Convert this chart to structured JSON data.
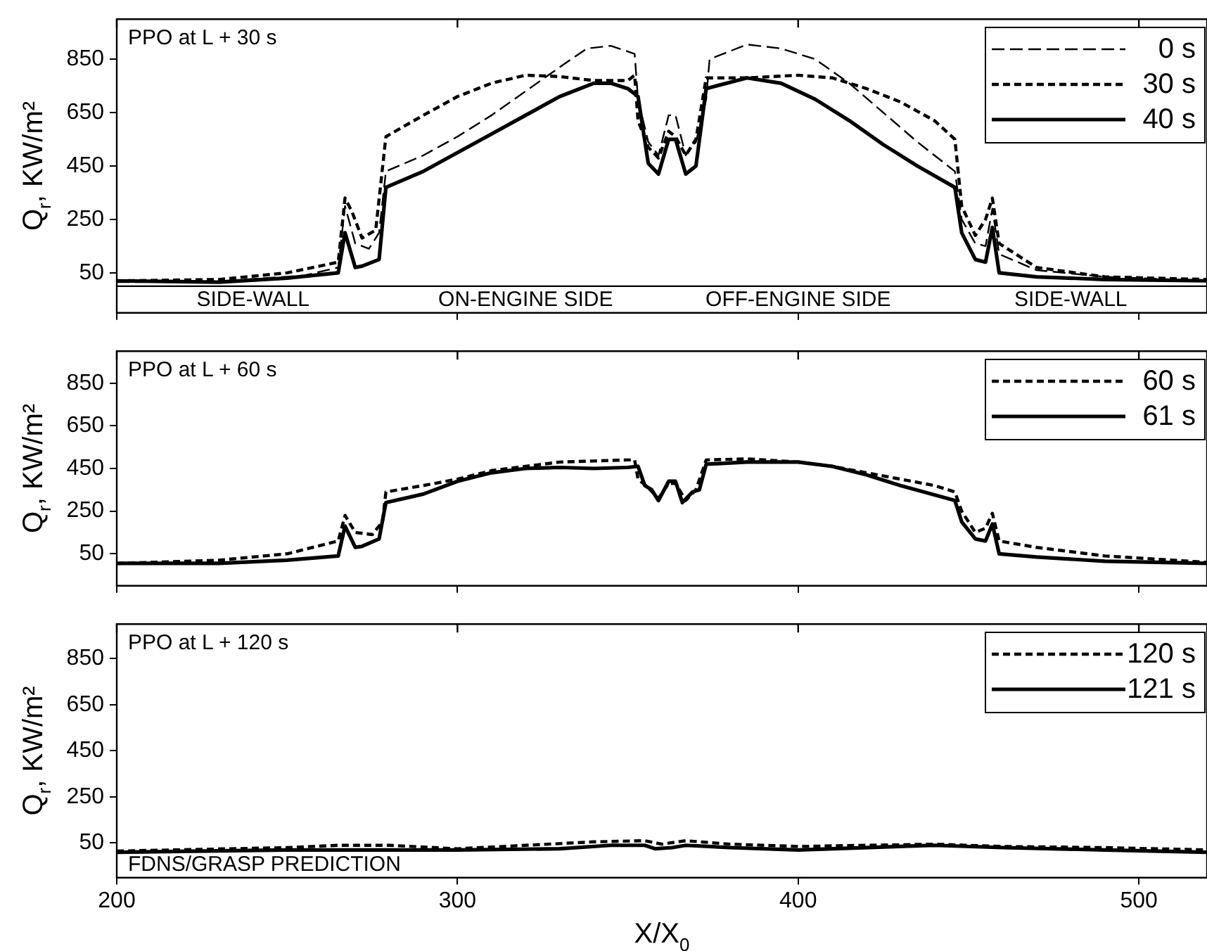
{
  "chart_data": [
    {
      "type": "line",
      "title": "PPO at L + 30 s",
      "ylabel": "Q$_{r}$, KW/m²",
      "xlim": [
        200,
        520
      ],
      "ylim": [
        -100,
        1000
      ],
      "xticks": [
        200,
        300,
        400,
        500
      ],
      "yticks": [
        50,
        250,
        450,
        650,
        850
      ],
      "tick_labels": "y",
      "legend": "top right",
      "ref_lines": [
        {
          "axis": "y",
          "value": 0
        }
      ],
      "annotations": [
        "SIDE-WALL",
        "ON-ENGINE SIDE",
        "OFF-ENGINE SIDE",
        "SIDE-WALL"
      ],
      "series": [
        {
          "name": "0 s",
          "color": "#000000",
          "line_style": "dashed",
          "x": [
            200,
            230,
            255,
            265,
            267,
            270,
            274,
            277,
            279,
            290,
            300,
            310,
            320,
            330,
            338,
            345,
            352,
            353,
            356,
            359,
            362,
            364,
            367,
            370,
            373,
            374,
            385,
            395,
            405,
            415,
            425,
            435,
            446,
            448,
            452,
            455,
            457,
            459,
            470,
            490,
            520
          ],
          "values": [
            15,
            18,
            40,
            70,
            300,
            160,
            140,
            200,
            430,
            490,
            560,
            640,
            730,
            820,
            890,
            900,
            870,
            700,
            540,
            490,
            640,
            640,
            490,
            540,
            700,
            850,
            905,
            890,
            850,
            760,
            650,
            540,
            430,
            250,
            160,
            150,
            290,
            120,
            60,
            35,
            20
          ]
        },
        {
          "name": "30 s",
          "color": "#000000",
          "line_style": "dotted",
          "x": [
            200,
            230,
            250,
            265,
            267,
            269,
            272,
            276,
            279,
            290,
            300,
            310,
            320,
            330,
            340,
            350,
            352,
            353,
            356,
            359,
            362,
            364,
            367,
            370,
            373,
            385,
            400,
            410,
            420,
            430,
            440,
            446,
            448,
            452,
            455,
            457,
            459,
            470,
            490,
            520
          ],
          "values": [
            20,
            25,
            50,
            90,
            330,
            280,
            180,
            210,
            560,
            640,
            710,
            760,
            790,
            785,
            770,
            770,
            790,
            620,
            520,
            480,
            580,
            560,
            490,
            550,
            780,
            780,
            790,
            780,
            740,
            690,
            620,
            550,
            300,
            190,
            250,
            330,
            160,
            70,
            35,
            25
          ]
        },
        {
          "name": "40 s",
          "color": "#000000",
          "line_style": "solid",
          "x": [
            200,
            230,
            250,
            265,
            267,
            270,
            272,
            277,
            279,
            290,
            300,
            310,
            320,
            330,
            340,
            345,
            350,
            353,
            356,
            359,
            362,
            364,
            367,
            370,
            373,
            385,
            395,
            405,
            415,
            425,
            435,
            446,
            448,
            452,
            455,
            457,
            459,
            470,
            490,
            520
          ],
          "values": [
            20,
            15,
            30,
            50,
            200,
            70,
            75,
            100,
            370,
            430,
            500,
            570,
            640,
            710,
            760,
            760,
            740,
            710,
            460,
            420,
            550,
            550,
            420,
            450,
            740,
            780,
            760,
            700,
            620,
            530,
            450,
            370,
            200,
            100,
            90,
            220,
            50,
            35,
            25,
            20
          ]
        }
      ]
    },
    {
      "type": "line",
      "title": "PPO at L + 60 s",
      "ylabel": "Q$_{r}$, KW/m²",
      "xlim": [
        200,
        520
      ],
      "ylim": [
        -100,
        1000
      ],
      "xticks": [
        200,
        300,
        400,
        500
      ],
      "yticks": [
        50,
        250,
        450,
        650,
        850
      ],
      "tick_labels": "y",
      "legend": "top right",
      "series": [
        {
          "name": "60 s",
          "color": "#000000",
          "line_style": "dotted",
          "x": [
            200,
            230,
            250,
            265,
            267,
            270,
            275,
            278,
            279,
            290,
            300,
            310,
            320,
            330,
            340,
            350,
            352,
            353,
            356,
            359,
            362,
            364,
            367,
            370,
            373,
            385,
            400,
            410,
            420,
            430,
            440,
            446,
            448,
            452,
            455,
            457,
            459,
            470,
            490,
            520
          ],
          "values": [
            5,
            20,
            50,
            110,
            230,
            150,
            140,
            200,
            340,
            370,
            400,
            440,
            460,
            480,
            485,
            490,
            490,
            400,
            360,
            310,
            380,
            380,
            300,
            350,
            490,
            495,
            480,
            460,
            430,
            400,
            370,
            340,
            250,
            150,
            170,
            240,
            110,
            80,
            40,
            10
          ]
        },
        {
          "name": "61 s",
          "color": "#000000",
          "line_style": "solid",
          "x": [
            200,
            230,
            250,
            265,
            267,
            270,
            272,
            277,
            279,
            290,
            300,
            310,
            320,
            330,
            340,
            350,
            353,
            355,
            357,
            359,
            362,
            364,
            366,
            369,
            371,
            373,
            385,
            400,
            410,
            420,
            430,
            446,
            448,
            452,
            455,
            457,
            459,
            470,
            490,
            520
          ],
          "values": [
            5,
            5,
            20,
            40,
            180,
            80,
            85,
            120,
            290,
            330,
            390,
            430,
            450,
            455,
            450,
            455,
            460,
            370,
            350,
            300,
            390,
            390,
            290,
            340,
            350,
            470,
            480,
            480,
            460,
            420,
            370,
            300,
            200,
            120,
            110,
            190,
            50,
            35,
            15,
            5
          ]
        }
      ]
    },
    {
      "type": "line",
      "title": "PPO at L + 120 s",
      "ylabel": "Q$_{r}$, KW/m²",
      "xlabel": "X/X$_{0}$",
      "xlim": [
        200,
        520
      ],
      "ylim": [
        -100,
        1000
      ],
      "xticks": [
        200,
        300,
        400,
        500
      ],
      "yticks": [
        50,
        250,
        450,
        650,
        850
      ],
      "legend": "top right",
      "annotations": [
        "FDNS/GRASP PREDICTION"
      ],
      "series": [
        {
          "name": "120 s",
          "color": "#000000",
          "line_style": "dotted",
          "x": [
            200,
            250,
            265,
            280,
            300,
            340,
            355,
            360,
            367,
            380,
            400,
            440,
            460,
            490,
            520
          ],
          "values": [
            15,
            30,
            40,
            40,
            25,
            55,
            60,
            45,
            60,
            45,
            35,
            45,
            35,
            30,
            20
          ]
        },
        {
          "name": "121 s",
          "color": "#000000",
          "line_style": "solid",
          "x": [
            200,
            250,
            300,
            330,
            345,
            355,
            358,
            363,
            367,
            380,
            400,
            440,
            460,
            490,
            520
          ],
          "values": [
            10,
            20,
            20,
            25,
            40,
            40,
            25,
            30,
            40,
            30,
            20,
            40,
            30,
            20,
            10
          ]
        }
      ]
    }
  ]
}
